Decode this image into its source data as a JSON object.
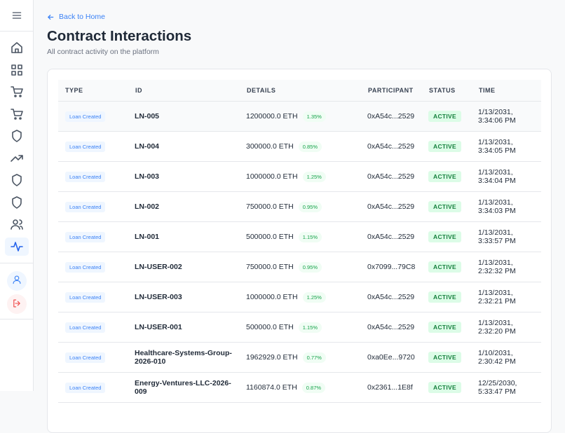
{
  "back_link": "Back to Home",
  "title": "Contract Interactions",
  "subtitle": "All contract activity on the platform",
  "table": {
    "columns": [
      "TYPE",
      "ID",
      "DETAILS",
      "PARTICIPANT",
      "STATUS",
      "TIME"
    ],
    "rows": [
      {
        "type": "Loan Created",
        "id": "LN-005",
        "amount": "1200000.0 ETH",
        "rate": "1.35%",
        "participant": "0xA54c...2529",
        "status": "ACTIVE",
        "time": "1/13/2031, 3:34:06 PM"
      },
      {
        "type": "Loan Created",
        "id": "LN-004",
        "amount": "300000.0 ETH",
        "rate": "0.85%",
        "participant": "0xA54c...2529",
        "status": "ACTIVE",
        "time": "1/13/2031, 3:34:05 PM"
      },
      {
        "type": "Loan Created",
        "id": "LN-003",
        "amount": "1000000.0 ETH",
        "rate": "1.25%",
        "participant": "0xA54c...2529",
        "status": "ACTIVE",
        "time": "1/13/2031, 3:34:04 PM"
      },
      {
        "type": "Loan Created",
        "id": "LN-002",
        "amount": "750000.0 ETH",
        "rate": "0.95%",
        "participant": "0xA54c...2529",
        "status": "ACTIVE",
        "time": "1/13/2031, 3:34:03 PM"
      },
      {
        "type": "Loan Created",
        "id": "LN-001",
        "amount": "500000.0 ETH",
        "rate": "1.15%",
        "participant": "0xA54c...2529",
        "status": "ACTIVE",
        "time": "1/13/2031, 3:33:57 PM"
      },
      {
        "type": "Loan Created",
        "id": "LN-USER-002",
        "amount": "750000.0 ETH",
        "rate": "0.95%",
        "participant": "0x7099...79C8",
        "status": "ACTIVE",
        "time": "1/13/2031, 2:32:32 PM"
      },
      {
        "type": "Loan Created",
        "id": "LN-USER-003",
        "amount": "1000000.0 ETH",
        "rate": "1.25%",
        "participant": "0xA54c...2529",
        "status": "ACTIVE",
        "time": "1/13/2031, 2:32:21 PM"
      },
      {
        "type": "Loan Created",
        "id": "LN-USER-001",
        "amount": "500000.0 ETH",
        "rate": "1.15%",
        "participant": "0xA54c...2529",
        "status": "ACTIVE",
        "time": "1/13/2031, 2:32:20 PM"
      },
      {
        "type": "Loan Created",
        "id": "Healthcare-Systems-Group-2026-010",
        "amount": "1962929.0 ETH",
        "rate": "0.77%",
        "participant": "0xa0Ee...9720",
        "status": "ACTIVE",
        "time": "1/10/2031, 2:30:42 PM"
      },
      {
        "type": "Loan Created",
        "id": "Energy-Ventures-LLC-2026-009",
        "amount": "1160874.0 ETH",
        "rate": "0.87%",
        "participant": "0x2361...1E8f",
        "status": "ACTIVE",
        "time": "12/25/2030, 5:33:47 PM"
      }
    ]
  }
}
